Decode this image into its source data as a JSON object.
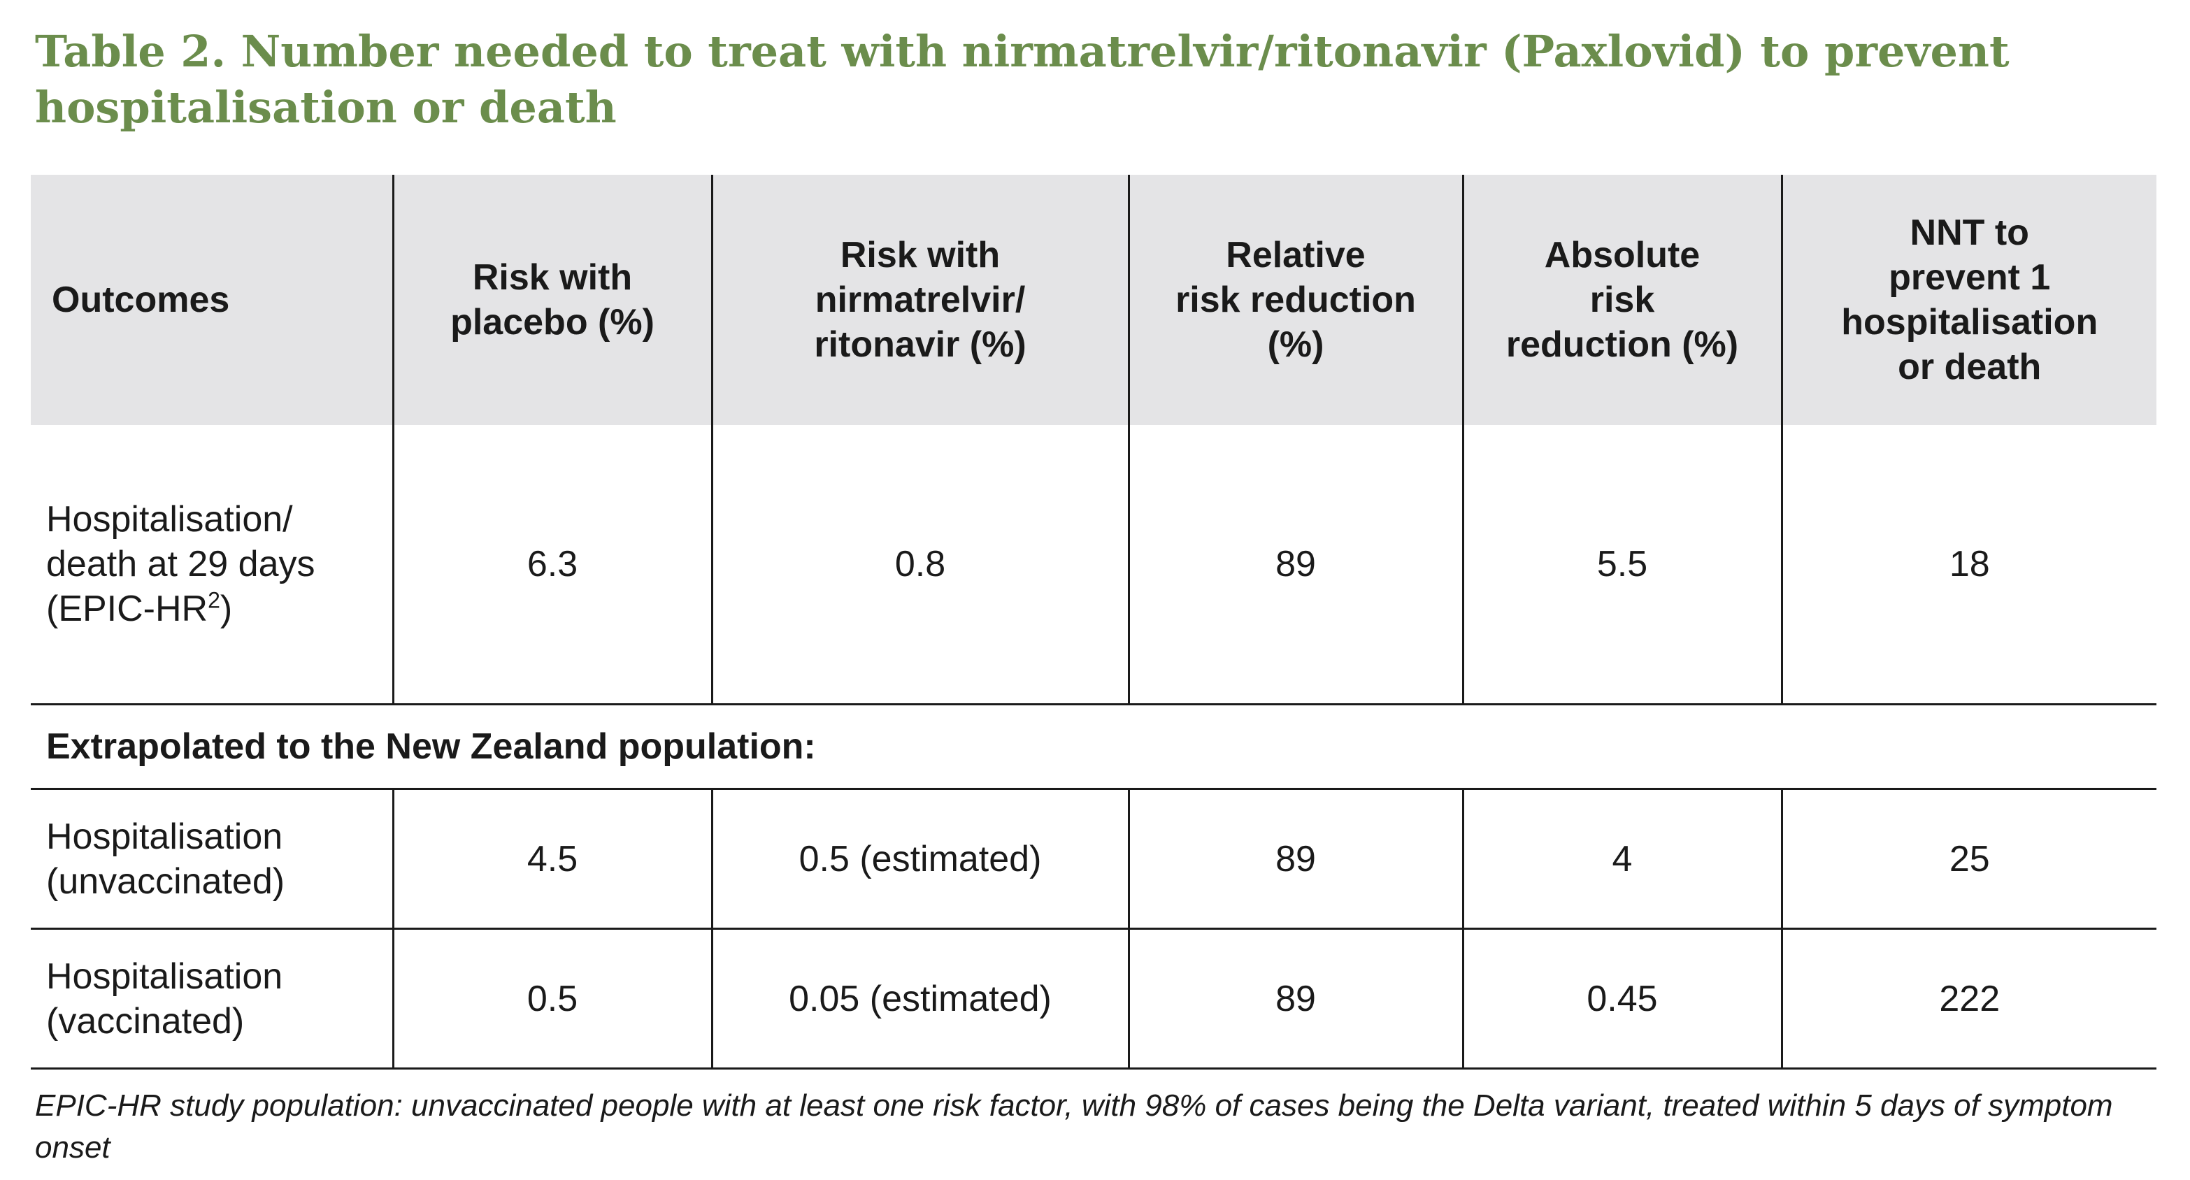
{
  "title": "Table 2. Number needed to treat with nirmatrelvir/ritonavir (Paxlovid) to prevent hospitalisation or death",
  "table": {
    "headers": [
      [
        "Outcomes"
      ],
      [
        "Risk with",
        "placebo (%)"
      ],
      [
        "Risk with",
        "nirmatrelvir/",
        "ritonavir (%)"
      ],
      [
        "Relative",
        "risk reduction",
        "(%)"
      ],
      [
        "Absolute",
        "risk",
        "reduction (%)"
      ],
      [
        "NNT to",
        "prevent 1",
        "hospitalisation",
        "or death"
      ]
    ],
    "main_row": {
      "outcome_lines": [
        "Hospitalisation/",
        "death at 29 days",
        "(EPIC-HR"
      ],
      "outcome_sup": "2",
      "outcome_tail": ")",
      "values": [
        "6.3",
        "0.8",
        "89",
        "5.5",
        "18"
      ]
    },
    "section_label": "Extrapolated to the New Zealand population:",
    "sub_rows": [
      {
        "outcome_lines": [
          "Hospitalisation",
          "(unvaccinated)"
        ],
        "values": [
          "4.5",
          "0.5 (estimated)",
          "89",
          "4",
          "25"
        ]
      },
      {
        "outcome_lines": [
          "Hospitalisation",
          "(vaccinated)"
        ],
        "values": [
          "0.5",
          "0.05 (estimated)",
          "89",
          "0.45",
          "222"
        ]
      }
    ]
  },
  "footnote": "EPIC-HR study population: unvaccinated people with at least one risk factor, with 98% of cases being the Delta variant, treated within 5 days of symptom onset",
  "colors": {
    "title": "#6b8d4c",
    "header_bg": "#e4e4e6",
    "rule": "#1a1a1a"
  }
}
